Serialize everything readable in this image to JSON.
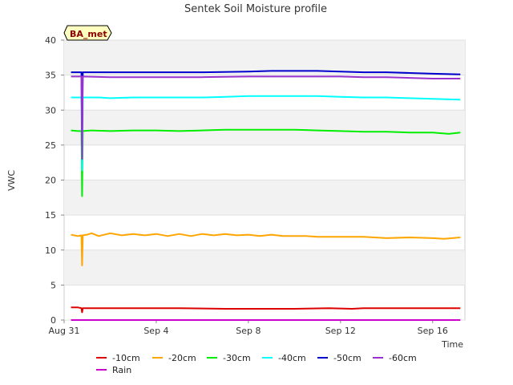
{
  "chart_data": {
    "type": "line",
    "title": "Sentek Soil Moisture profile",
    "xlabel": "Time",
    "ylabel": "VWC",
    "badge": "BA_met",
    "ylim": [
      0,
      40
    ],
    "yticks": [
      0,
      5,
      10,
      15,
      20,
      25,
      30,
      35,
      40
    ],
    "xlim": [
      0,
      17.4
    ],
    "xticks": [
      {
        "label": "Aug 31",
        "value": 0
      },
      {
        "label": "Sep 4",
        "value": 4
      },
      {
        "label": "Sep 8",
        "value": 8
      },
      {
        "label": "Sep 12",
        "value": 12
      },
      {
        "label": "Sep 16",
        "value": 16
      }
    ],
    "grid": "horizontal bands",
    "legend_position": "bottom",
    "series": [
      {
        "name": "-10cm",
        "color": "#dd0000",
        "x": [
          0.3,
          0.6,
          0.75,
          0.78,
          0.81,
          1.5,
          3,
          5,
          7,
          8,
          10,
          11.5,
          12.5,
          13,
          14,
          16,
          17.2
        ],
        "y": [
          1.8,
          1.8,
          1.7,
          1.1,
          1.7,
          1.7,
          1.7,
          1.7,
          1.6,
          1.6,
          1.6,
          1.7,
          1.6,
          1.7,
          1.7,
          1.7,
          1.7
        ]
      },
      {
        "name": "-20cm",
        "color": "#ffa500",
        "x": [
          0.3,
          0.6,
          0.75,
          0.78,
          0.81,
          1,
          1.2,
          1.5,
          2,
          2.5,
          3,
          3.5,
          4,
          4.5,
          5,
          5.5,
          6,
          6.5,
          7,
          7.5,
          8,
          8.5,
          9,
          9.5,
          10,
          10.5,
          11,
          12,
          13,
          14,
          15,
          16,
          16.5,
          17.2
        ],
        "y": [
          12.2,
          12.0,
          12.1,
          7.8,
          12.1,
          12.2,
          12.4,
          12.0,
          12.4,
          12.1,
          12.3,
          12.1,
          12.3,
          12.0,
          12.3,
          12.0,
          12.3,
          12.1,
          12.3,
          12.1,
          12.2,
          12.0,
          12.2,
          12.0,
          12.0,
          12.0,
          11.9,
          11.9,
          11.9,
          11.7,
          11.8,
          11.7,
          11.6,
          11.8
        ]
      },
      {
        "name": "-30cm",
        "color": "#00ee00",
        "x": [
          0.3,
          0.6,
          0.75,
          0.78,
          0.81,
          1.2,
          2,
          3,
          4,
          5,
          6,
          7,
          8,
          9,
          10,
          11,
          12,
          13,
          14,
          15,
          16,
          16.7,
          17.2
        ],
        "y": [
          27.1,
          27.0,
          27.0,
          17.7,
          27.0,
          27.1,
          27.0,
          27.1,
          27.1,
          27.0,
          27.1,
          27.2,
          27.2,
          27.2,
          27.2,
          27.1,
          27.0,
          26.9,
          26.9,
          26.8,
          26.8,
          26.6,
          26.8
        ]
      },
      {
        "name": "-40cm",
        "color": "#00ffff",
        "x": [
          0.3,
          0.6,
          0.75,
          0.78,
          0.81,
          1.5,
          2,
          3,
          4,
          5,
          6,
          7,
          8,
          9,
          10,
          11,
          12,
          13,
          14,
          15,
          16,
          17.2
        ],
        "y": [
          31.8,
          31.8,
          31.8,
          21.4,
          31.8,
          31.8,
          31.7,
          31.8,
          31.8,
          31.8,
          31.8,
          31.9,
          32.0,
          32.0,
          32.0,
          32.0,
          31.9,
          31.8,
          31.8,
          31.7,
          31.6,
          31.5
        ]
      },
      {
        "name": "-50cm",
        "color": "#0000cc",
        "x": [
          0.3,
          0.6,
          0.75,
          0.78,
          0.81,
          2,
          4,
          6,
          8,
          9,
          10,
          11,
          12,
          13,
          14,
          15,
          16,
          17.2
        ],
        "y": [
          35.4,
          35.4,
          35.4,
          25.0,
          35.4,
          35.4,
          35.4,
          35.4,
          35.5,
          35.6,
          35.6,
          35.6,
          35.5,
          35.4,
          35.4,
          35.3,
          35.2,
          35.1
        ]
      },
      {
        "name": "-60cm",
        "color": "#9932cc",
        "x": [
          0.3,
          0.6,
          0.75,
          0.78,
          0.81,
          2,
          4,
          6,
          8,
          9,
          10,
          11,
          12,
          13,
          14,
          15,
          16,
          17.2
        ],
        "y": [
          34.8,
          34.8,
          34.8,
          23.0,
          34.8,
          34.7,
          34.7,
          34.7,
          34.8,
          34.8,
          34.8,
          34.8,
          34.8,
          34.7,
          34.7,
          34.6,
          34.5,
          34.5
        ]
      },
      {
        "name": "Rain",
        "color": "#cc00cc",
        "x": [
          0.3,
          17.2
        ],
        "y": [
          0,
          0
        ]
      }
    ]
  }
}
